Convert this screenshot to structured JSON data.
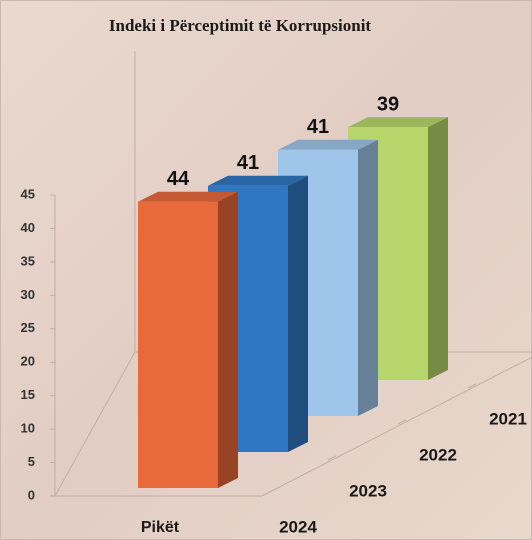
{
  "chart_data": {
    "type": "bar3d",
    "title": "Indeki i Përceptimit të Korrupsionit",
    "categories": [
      "2024",
      "2023",
      "2022",
      "2021"
    ],
    "values": [
      44,
      41,
      41,
      39
    ],
    "colors": [
      "#e8693a",
      "#2f77c2",
      "#9fc5ea",
      "#b6d66b"
    ],
    "x_label": "Pikët",
    "ylim": [
      0,
      45
    ],
    "yticks": [
      0,
      5,
      10,
      15,
      20,
      25,
      30,
      35,
      40,
      45
    ]
  }
}
